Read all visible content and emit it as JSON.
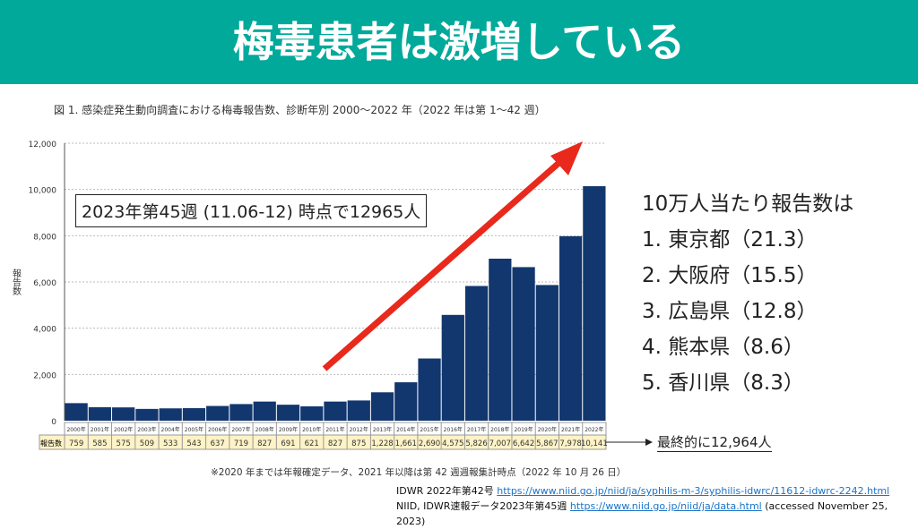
{
  "header": {
    "title": "梅毒患者は激増している"
  },
  "chart_data": {
    "type": "bar",
    "title": "図 1. 感染症発生動向調査における梅毒報告数、診断年別 2000〜2022 年（2022 年は第 1〜42 週）",
    "ylabel": "報告数",
    "ylim": [
      0,
      12000
    ],
    "yticks": [
      "0",
      "2,000",
      "4,000",
      "6,000",
      "8,000",
      "10,000",
      "12,000"
    ],
    "categories": [
      "2000年",
      "2001年",
      "2002年",
      "2003年",
      "2004年",
      "2005年",
      "2006年",
      "2007年",
      "2008年",
      "2009年",
      "2010年",
      "2011年",
      "2012年",
      "2013年",
      "2014年",
      "2015年",
      "2016年",
      "2017年",
      "2018年",
      "2019年",
      "2020年",
      "2021年",
      "2022年"
    ],
    "values": [
      759,
      585,
      575,
      509,
      533,
      543,
      637,
      719,
      827,
      691,
      621,
      827,
      875,
      1228,
      1661,
      2690,
      4575,
      5826,
      7007,
      6642,
      5867,
      7978,
      10141
    ],
    "value_labels": [
      "759",
      "585",
      "575",
      "509",
      "533",
      "543",
      "637",
      "719",
      "827",
      "691",
      "621",
      "827",
      "875",
      "1,228",
      "1,661",
      "2,690",
      "4,575",
      "5,826",
      "7,007",
      "6,642",
      "5,867",
      "7,978",
      "10,141"
    ],
    "table_row_label": "報告数",
    "bar_color": "#12376e",
    "grid": true
  },
  "annotation": "2023年第45週 (11.06-12) 時点で12965人",
  "ranking": {
    "title": "10万人当たり報告数は",
    "items": [
      "1.  東京都（21.3）",
      "2.  大阪府（15.5）",
      "3.  広島県（12.8）",
      "4.  熊本県（8.6）",
      "5.  香川県（8.3）"
    ]
  },
  "final_note": "最終的に12,964人",
  "footnote": "※2020 年までは年報確定データ、2021 年以降は第 42 週週報集計時点（2022 年 10 月 26 日）",
  "refs": [
    {
      "prefix": "IDWR 2022年第42号 ",
      "url": "https://www.niid.go.jp/niid/ja/syphilis-m-3/syphilis-idwrc/11612-idwrc-2242.html",
      "suffix": ""
    },
    {
      "prefix": "NIID, IDWR速報データ2023年第45週 ",
      "url": "https://www.niid.go.jp/niid/ja/data.html",
      "suffix": " (accessed November 25, 2023)"
    }
  ],
  "colors": {
    "header": "#00a99a",
    "arrow": "#e8291c",
    "table_bg": "#fdf3c6"
  }
}
